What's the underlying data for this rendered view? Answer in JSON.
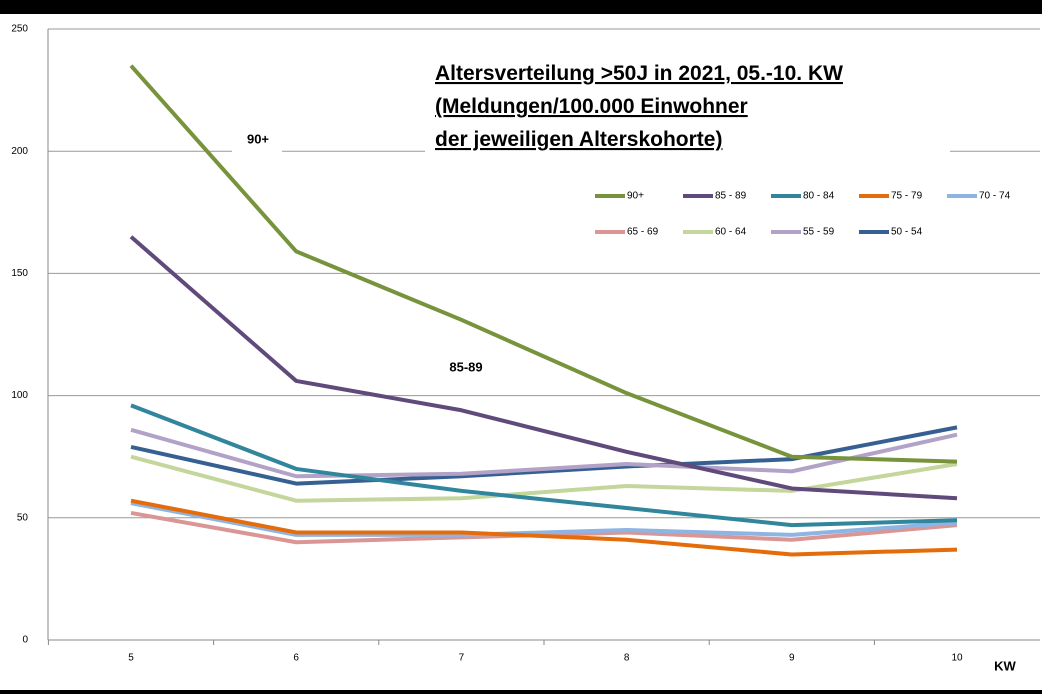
{
  "chart_data": {
    "type": "line",
    "title": [
      "Altersverteilung  >50J in 2021, 05.-10. KW",
      "(Meldungen/100.000 Einwohner",
      "der jeweiligen Alterskohorte)"
    ],
    "x_label": "KW",
    "categories": [
      "5",
      "6",
      "7",
      "8",
      "9",
      "10"
    ],
    "series": [
      {
        "name": "90+",
        "color": "#77933c",
        "values": [
          235,
          159,
          131,
          101,
          75,
          73
        ]
      },
      {
        "name": "85 - 89",
        "color": "#604a7b",
        "values": [
          165,
          106,
          94,
          77,
          62,
          58
        ]
      },
      {
        "name": "80 - 84",
        "color": "#31859c",
        "values": [
          96,
          70,
          61,
          54,
          47,
          49
        ]
      },
      {
        "name": "75 - 79",
        "color": "#e46c0a",
        "values": [
          57,
          44,
          44,
          41,
          35,
          37
        ]
      },
      {
        "name": "70 - 74",
        "color": "#8eb4e3",
        "values": [
          56,
          43,
          43,
          45,
          43,
          48
        ]
      },
      {
        "name": "65 - 69",
        "color": "#d99694",
        "values": [
          52,
          40,
          42,
          44,
          41,
          47
        ]
      },
      {
        "name": "60 - 64",
        "color": "#c3d69b",
        "values": [
          75,
          57,
          58,
          63,
          61,
          72
        ]
      },
      {
        "name": "55 - 59",
        "color": "#b3a2c7",
        "values": [
          86,
          67,
          68,
          72,
          69,
          84
        ]
      },
      {
        "name": "50 - 54",
        "color": "#376092",
        "values": [
          79,
          64,
          67,
          71,
          74,
          87
        ]
      }
    ],
    "annotations": [
      "90+",
      "85-89"
    ],
    "ylim": [
      0,
      250
    ],
    "yticks": [
      0,
      50,
      100,
      150,
      200,
      250
    ],
    "grid": true,
    "legend": "top-right"
  }
}
